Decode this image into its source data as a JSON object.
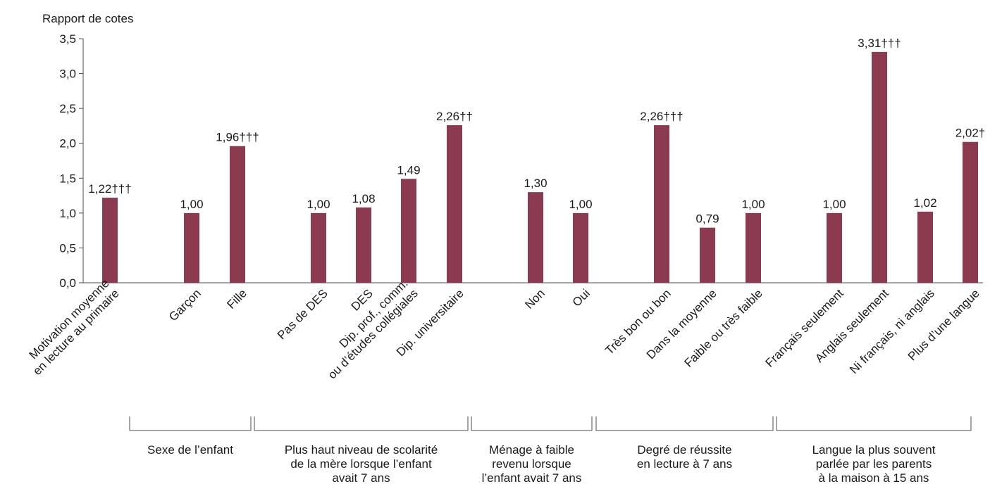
{
  "chart_data": {
    "type": "bar",
    "ylabel": "Rapport de cotes",
    "ylim": [
      0,
      3.5
    ],
    "yticks": [
      "0,0",
      "0,5",
      "1,0",
      "1,5",
      "2,0",
      "2,5",
      "3,0",
      "3,5"
    ],
    "bar_color": "#8B3A50",
    "grid": false,
    "categories": [
      {
        "label": "Motivation moyenne\nen lecture au primaire",
        "value": 1.22,
        "value_label": "1,22†††"
      },
      {
        "label": "Garçon",
        "value": 1.0,
        "value_label": "1,00"
      },
      {
        "label": "Fille",
        "value": 1.96,
        "value_label": "1,96†††"
      },
      {
        "label": "Pas de DES",
        "value": 1.0,
        "value_label": "1,00"
      },
      {
        "label": "DES",
        "value": 1.08,
        "value_label": "1,08"
      },
      {
        "label": "Dip. prof., comm.\nou d’études collégiales",
        "value": 1.49,
        "value_label": "1,49"
      },
      {
        "label": "Dip. universitaire",
        "value": 2.26,
        "value_label": "2,26††"
      },
      {
        "label": "Non",
        "value": 1.3,
        "value_label": "1,30"
      },
      {
        "label": "Oui",
        "value": 1.0,
        "value_label": "1,00"
      },
      {
        "label": "Très bon ou bon",
        "value": 2.26,
        "value_label": "2,26†††"
      },
      {
        "label": "Dans la moyenne",
        "value": 0.79,
        "value_label": "0,79"
      },
      {
        "label": "Faible ou très faible",
        "value": 1.0,
        "value_label": "1,00"
      },
      {
        "label": "Français seulement",
        "value": 1.0,
        "value_label": "1,00"
      },
      {
        "label": "Anglais seulement",
        "value": 3.31,
        "value_label": "3,31†††"
      },
      {
        "label": "Ni français, ni anglais",
        "value": 1.02,
        "value_label": "1,02"
      },
      {
        "label": "Plus d’une langue",
        "value": 2.02,
        "value_label": "2,02†"
      }
    ],
    "groups": [
      {
        "label": "Sexe de l’enfant",
        "members": [
          1,
          2
        ]
      },
      {
        "label": "Plus haut niveau de scolarité\nde la mère lorsque l’enfant\navait 7 ans",
        "members": [
          3,
          4,
          5,
          6
        ]
      },
      {
        "label": "Ménage à faible\nrevenu lorsque\nl’enfant avait 7 ans",
        "members": [
          7,
          8
        ]
      },
      {
        "label": "Degré de réussite\nen lecture à 7 ans",
        "members": [
          9,
          10,
          11
        ]
      },
      {
        "label": "Langue la plus souvent\nparlée par les parents\nà la maison à 15 ans",
        "members": [
          12,
          13,
          14,
          15
        ]
      }
    ]
  }
}
